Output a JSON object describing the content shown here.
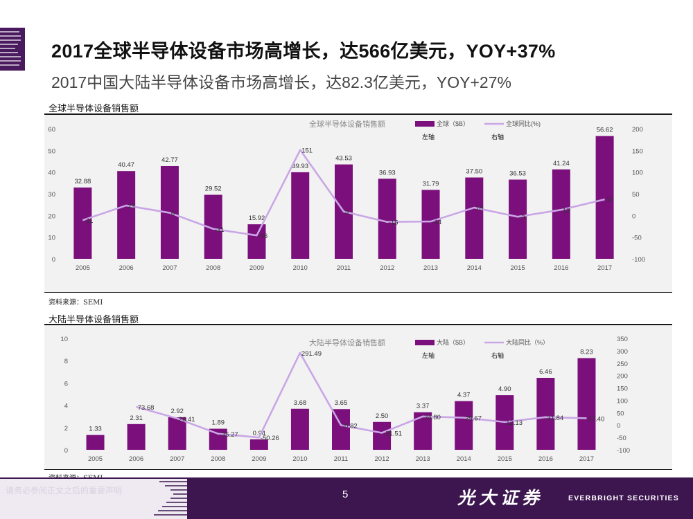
{
  "header": {
    "title": "2017全球半导体设备市场高增长，达566亿美元，YOY+37%",
    "subtitle": "2017中国大陆半导体设备市场高增长，达82.3亿美元，YOY+27%"
  },
  "colors": {
    "bar": "#7b0f7b",
    "line": "#c9a6e6",
    "footer": "#3d1650"
  },
  "chart_data": [
    {
      "type": "bar",
      "section_label": "全球半导体设备销售额",
      "title": "全球半导体设备销售额",
      "categories": [
        "2005",
        "2006",
        "2007",
        "2008",
        "2009",
        "2010",
        "2011",
        "2012",
        "2013",
        "2014",
        "2015",
        "2016",
        "2017"
      ],
      "series": [
        {
          "name": "全球（$B）",
          "axis": "left",
          "axis_note": "左轴",
          "type": "bar",
          "values": [
            32.88,
            40.47,
            42.77,
            29.52,
            15.92,
            39.93,
            43.53,
            36.93,
            31.79,
            37.5,
            36.53,
            41.24,
            56.62
          ],
          "labels": [
            "32.88",
            "40.47",
            "42.77",
            "29.52",
            "15.92",
            "39.93",
            "43.53",
            "36.93",
            "31.79",
            "37.50",
            "36.53",
            "41.24",
            "56.62"
          ]
        },
        {
          "name": "全球同比(%)",
          "axis": "right",
          "axis_note": "右轴",
          "type": "line",
          "values": [
            -11,
            23,
            6,
            -31,
            -46,
            151,
            9,
            -15,
            -14,
            18,
            -3,
            13,
            37
          ],
          "labels": [
            "-11",
            "23",
            "6",
            "-31",
            "-46",
            "151",
            "9",
            "-15",
            "-14",
            "18",
            "-3",
            "13",
            "37"
          ]
        }
      ],
      "ylim_left": [
        0,
        60
      ],
      "yticks_left": [
        "60",
        "50",
        "40",
        "30",
        "20",
        "10",
        "0"
      ],
      "ylim_right": [
        -100,
        200
      ],
      "yticks_right": [
        "200",
        "150",
        "100",
        "50",
        "0",
        "-50",
        "-100"
      ],
      "source": "资料来源：SEMI"
    },
    {
      "type": "bar",
      "section_label": "大陆半导体设备销售额",
      "title": "大陆半导体设备销售额",
      "categories": [
        "2005",
        "2006",
        "2007",
        "2008",
        "2009",
        "2010",
        "2011",
        "2012",
        "2013",
        "2014",
        "2015",
        "2016",
        "2017"
      ],
      "series": [
        {
          "name": "大陆（$B）",
          "axis": "left",
          "axis_note": "左轴",
          "type": "bar",
          "values": [
            1.33,
            2.31,
            2.92,
            1.89,
            0.94,
            3.68,
            3.65,
            2.5,
            3.37,
            4.37,
            4.9,
            6.46,
            8.23
          ],
          "labels": [
            "1.33",
            "2.31",
            "2.92",
            "1.89",
            "0.94",
            "3.68",
            "3.65",
            "2.50",
            "3.37",
            "4.37",
            "4.90",
            "6.46",
            "8.23"
          ]
        },
        {
          "name": "大陆同比（%）",
          "axis": "right",
          "axis_note": "右轴",
          "type": "line",
          "values": [
            null,
            73.68,
            26.41,
            -35.27,
            -50.26,
            291.49,
            -0.82,
            -31.51,
            34.8,
            29.67,
            12.13,
            31.84,
            27.4
          ],
          "labels": [
            "",
            "73.68",
            "26.41",
            "-35.27",
            "-50.26",
            "291.49",
            "-0.82",
            "-31.51",
            "34.80",
            "29.67",
            "12.13",
            "31.84",
            "27.40"
          ]
        }
      ],
      "ylim_left": [
        0,
        10
      ],
      "yticks_left": [
        "10",
        "8",
        "6",
        "4",
        "2",
        "0"
      ],
      "ylim_right": [
        -100,
        350
      ],
      "yticks_right": [
        "350",
        "300",
        "250",
        "200",
        "150",
        "100",
        "50",
        "0",
        "-50",
        "-100"
      ],
      "source": "资料来源：SEMI"
    }
  ],
  "footer": {
    "disclaimer": "请务必参阅正文之后的重要声明",
    "page_number": "5",
    "brand_cn": "光大证券",
    "brand_en": "EVERBRIGHT SECURITIES"
  }
}
